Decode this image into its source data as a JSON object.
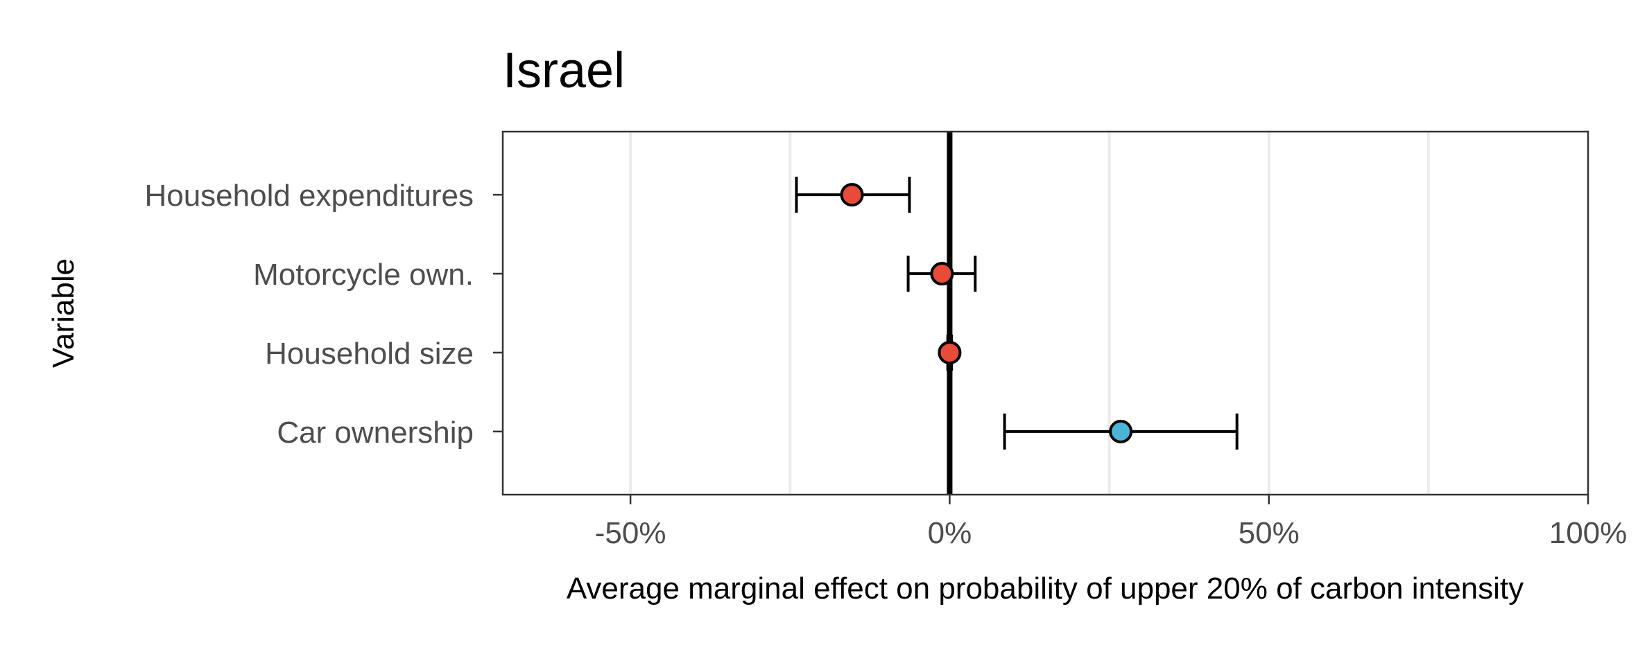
{
  "chart_data": {
    "type": "scatter",
    "title": "Israel",
    "xlabel": "Average marginal effect on probability of upper 20% of carbon intensity",
    "ylabel": "Variable",
    "xlim": [
      -0.7,
      1.0
    ],
    "x_ticks": [
      -0.5,
      0,
      0.5,
      1.0
    ],
    "x_tick_labels": [
      "-50%",
      "0%",
      "50%",
      "100%"
    ],
    "x_minor_grid": [
      -0.25,
      0.25,
      0.75
    ],
    "grid": true,
    "legend": "none",
    "reference_line": 0,
    "colors": {
      "negative": "#E84B37",
      "positive": "#4AB5D6"
    },
    "points": [
      {
        "label": "Household expenditures",
        "estimate": -0.153,
        "ci_low": -0.24,
        "ci_high": -0.063,
        "sign": "negative"
      },
      {
        "label": "Motorcycle own.",
        "estimate": -0.012,
        "ci_low": -0.065,
        "ci_high": 0.04,
        "sign": "negative"
      },
      {
        "label": "Household size",
        "estimate": 0.0,
        "ci_low": -0.003,
        "ci_high": 0.003,
        "sign": "negative"
      },
      {
        "label": "Car ownership",
        "estimate": 0.268,
        "ci_low": 0.086,
        "ci_high": 0.45,
        "sign": "positive"
      }
    ]
  }
}
